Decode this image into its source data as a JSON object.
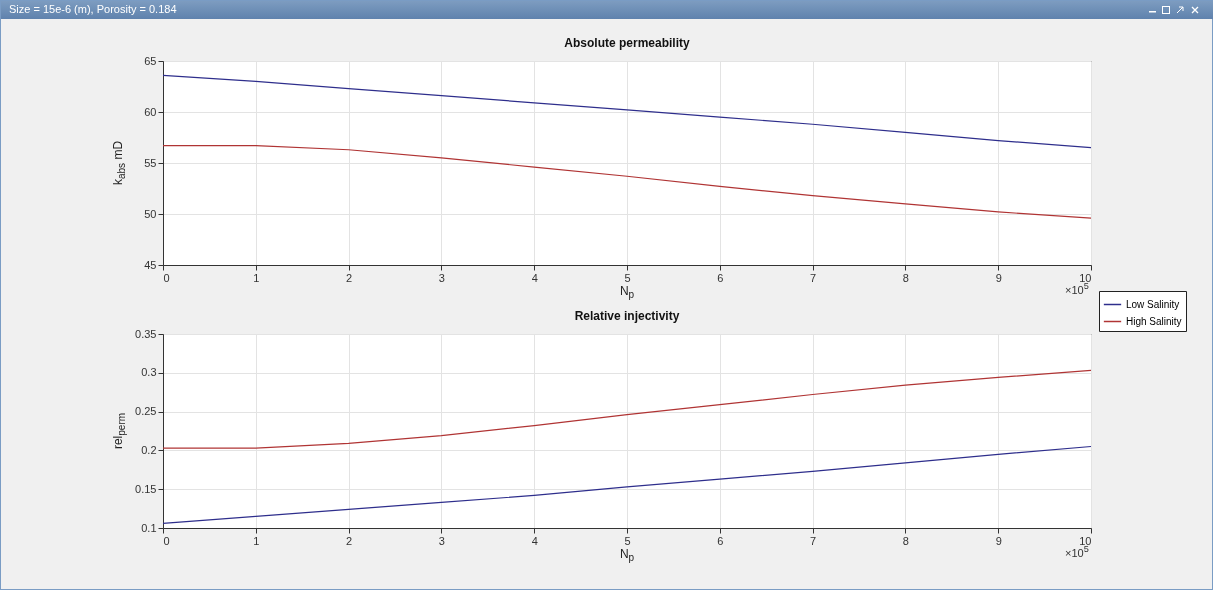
{
  "chart_data": [
    {
      "type": "line",
      "title": "Absolute permeability",
      "xlabel": "N$_{p}$",
      "ylabel": "k$_{abs}$ mD",
      "annotations": [
        "Size = 15e-6 (m), Porosity = 0.184",
        "×10$^{5}$"
      ],
      "x": [
        0,
        1,
        2,
        3,
        4,
        5,
        6,
        7,
        8,
        9,
        10
      ],
      "xlim": [
        0,
        10
      ],
      "xticks": [
        0,
        1,
        2,
        3,
        4,
        5,
        6,
        7,
        8,
        9,
        10
      ],
      "ylim": [
        45,
        65
      ],
      "yticks": [
        45,
        50,
        55,
        60,
        65
      ],
      "grid": true,
      "legend": "bottom right",
      "series": [
        {
          "name": "Low Salinity",
          "color": "#2e2e8c",
          "values": [
            63.6,
            63.0,
            62.3,
            61.6,
            60.9,
            60.2,
            59.5,
            58.8,
            58.0,
            57.2,
            56.5
          ]
        },
        {
          "name": "High Salinity",
          "color": "#b03434",
          "values": [
            56.7,
            56.7,
            56.3,
            55.5,
            54.6,
            53.7,
            52.7,
            51.8,
            51.0,
            50.2,
            49.6
          ]
        }
      ]
    },
    {
      "type": "line",
      "title": "Relative injectivity",
      "xlabel": "N$_{p}$",
      "ylabel": "rel$_{perm}$",
      "annotations": [
        "×10$^{5}$"
      ],
      "x": [
        0,
        1,
        2,
        3,
        4,
        5,
        6,
        7,
        8,
        9,
        10
      ],
      "xlim": [
        0,
        10
      ],
      "xticks": [
        0,
        1,
        2,
        3,
        4,
        5,
        6,
        7,
        8,
        9,
        10
      ],
      "ylim": [
        0.1,
        0.35
      ],
      "yticks": [
        0.1,
        0.15,
        0.2,
        0.25,
        0.3,
        0.35
      ],
      "grid": true,
      "series": [
        {
          "color": "#2e2e8c",
          "values": [
            0.106,
            0.115,
            0.124,
            0.133,
            0.142,
            0.153,
            0.163,
            0.173,
            0.184,
            0.195,
            0.205
          ]
        },
        {
          "color": "#b03434",
          "values": [
            0.203,
            0.203,
            0.209,
            0.219,
            0.232,
            0.246,
            0.259,
            0.272,
            0.284,
            0.294,
            0.303
          ]
        }
      ]
    }
  ]
}
